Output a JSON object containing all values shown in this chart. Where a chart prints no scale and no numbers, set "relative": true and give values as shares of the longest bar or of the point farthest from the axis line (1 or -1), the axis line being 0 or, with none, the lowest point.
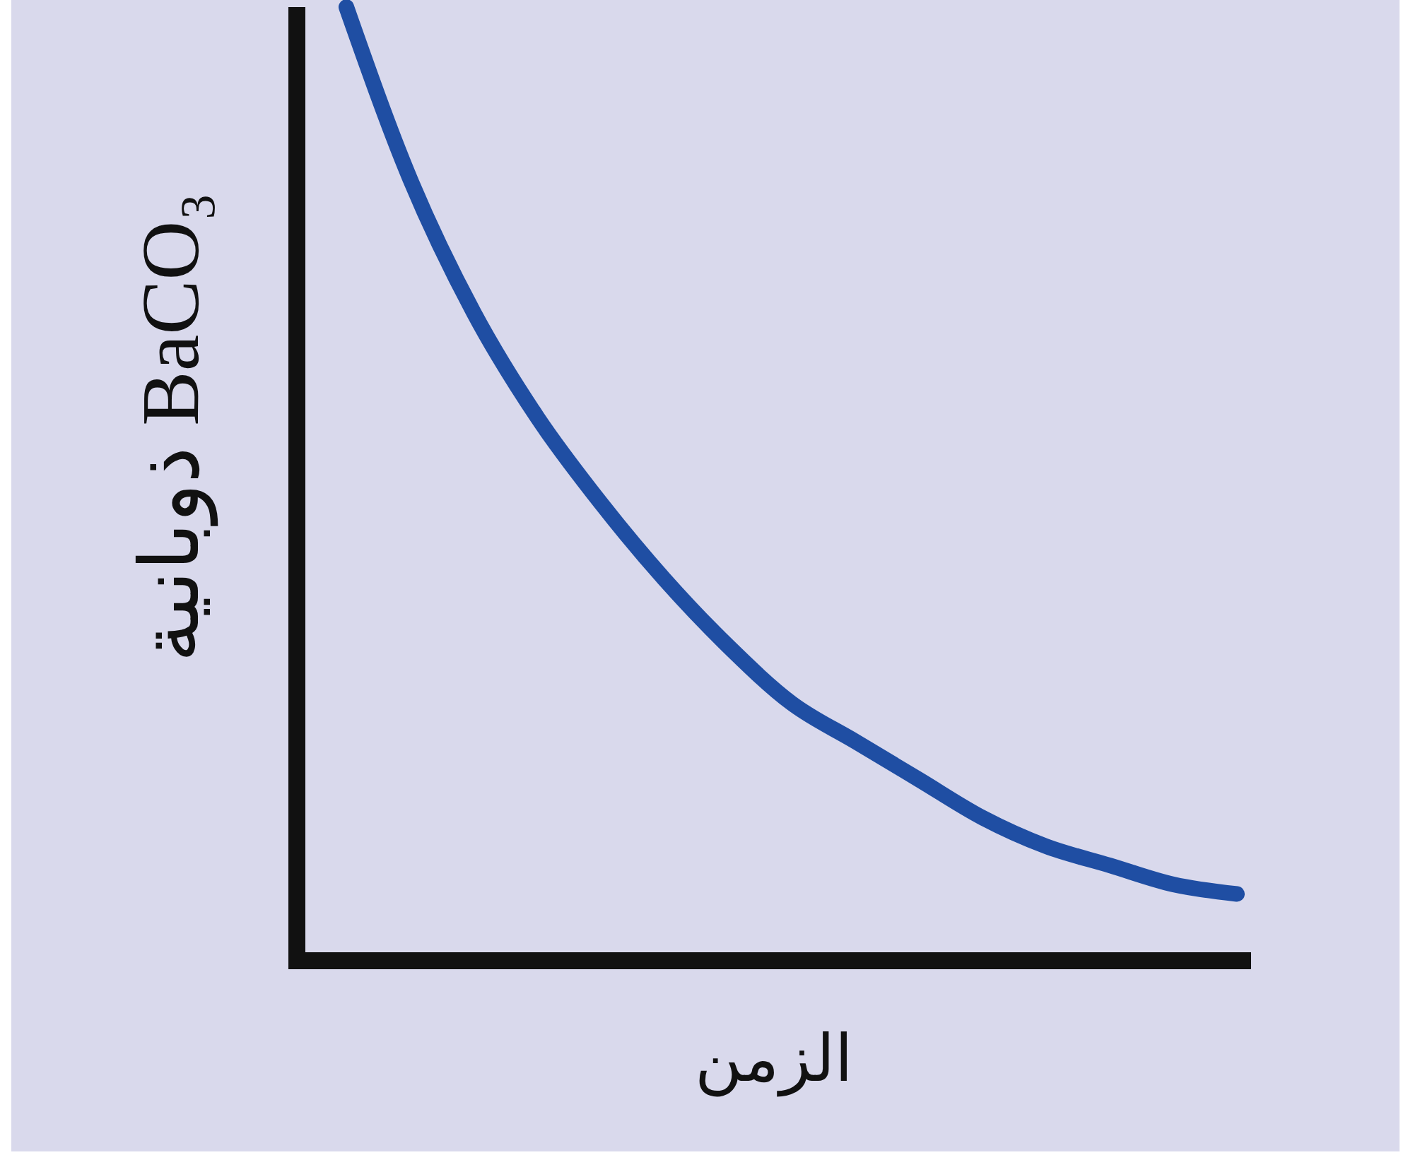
{
  "chart_data": {
    "type": "line",
    "xlabel": "الزمن",
    "ylabel": "ذوبانية BaCO₃",
    "relative": true,
    "categories": [
      null,
      null,
      null,
      null,
      null,
      null,
      null,
      null,
      null,
      null,
      null,
      null,
      null,
      null,
      null
    ],
    "series": [
      {
        "color": "#1f4ea3",
        "values": [
          1,
          0.82,
          0.68,
          0.57,
          0.48,
          0.4,
          0.33,
          0.27,
          0.23,
          0.19,
          0.15,
          0.12,
          0.1,
          0.08,
          0.07
        ]
      }
    ]
  }
}
